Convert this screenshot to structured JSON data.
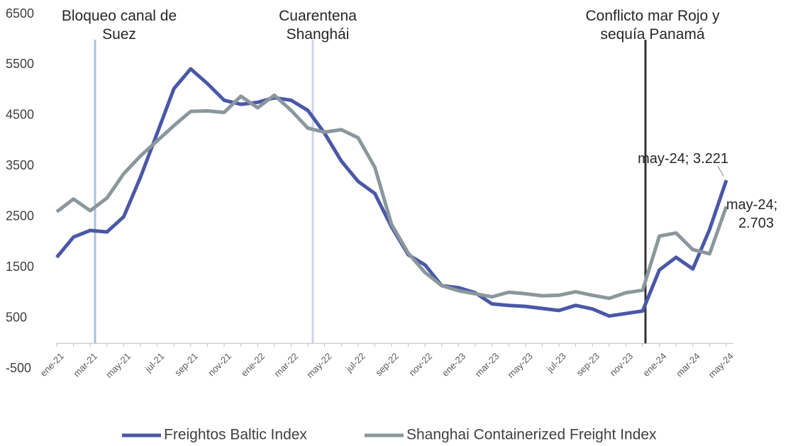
{
  "chart_data": {
    "type": "line",
    "categories": [
      "ene-21",
      null,
      "mar-21",
      null,
      "may-21",
      null,
      "jul-21",
      null,
      "sep-21",
      null,
      "nov-21",
      null,
      "ene-22",
      null,
      "mar-22",
      null,
      "may-22",
      null,
      "jul-22",
      null,
      "sep-22",
      null,
      "nov-22",
      null,
      "ene-23",
      null,
      "mar-23",
      null,
      "may-23",
      null,
      "jul-23",
      null,
      "sep-23",
      null,
      "nov-23",
      null,
      "ene-24",
      null,
      "mar-24",
      null,
      "may-24"
    ],
    "series": [
      {
        "name": "Freightos Baltic Index",
        "color": "#4a58a6",
        "values": [
          1700,
          2100,
          2230,
          2200,
          2500,
          3280,
          4150,
          5030,
          5420,
          5130,
          4800,
          4720,
          4760,
          4850,
          4800,
          4600,
          4150,
          3600,
          3200,
          2960,
          2300,
          1750,
          1550,
          1140,
          1100,
          1000,
          780,
          750,
          730,
          690,
          650,
          750,
          680,
          540,
          590,
          640,
          1450,
          1700,
          1470,
          2250,
          3221
        ],
        "value_labels": [
          null,
          null,
          null,
          null,
          null,
          null,
          null,
          null,
          null,
          null,
          null,
          null,
          null,
          null,
          null,
          null,
          null,
          null,
          null,
          null,
          null,
          null,
          null,
          null,
          null,
          null,
          null,
          null,
          null,
          null,
          null,
          null,
          null,
          null,
          null,
          null,
          null,
          null,
          null,
          null,
          "may-24; 3.221"
        ]
      },
      {
        "name": "Shanghai Containerized Freight Index",
        "color": "#8a989d",
        "values": [
          2600,
          2850,
          2620,
          2870,
          3350,
          3700,
          4000,
          4300,
          4580,
          4590,
          4560,
          4880,
          4650,
          4900,
          4600,
          4250,
          4170,
          4220,
          4060,
          3480,
          2350,
          1780,
          1400,
          1140,
          1040,
          980,
          920,
          1010,
          980,
          940,
          950,
          1020,
          950,
          890,
          1000,
          1050,
          2120,
          2180,
          1850,
          1770,
          2703
        ],
        "value_labels": [
          null,
          null,
          null,
          null,
          null,
          null,
          null,
          null,
          null,
          null,
          null,
          null,
          null,
          null,
          null,
          null,
          null,
          null,
          null,
          null,
          null,
          null,
          null,
          null,
          null,
          null,
          null,
          null,
          null,
          null,
          null,
          null,
          null,
          null,
          null,
          null,
          null,
          null,
          null,
          null,
          "may-24; 2.703"
        ]
      }
    ],
    "annotations": [
      {
        "text": [
          "Bloqueo canal de",
          "Suez"
        ],
        "color": "#a9c1da"
      },
      {
        "text": [
          "Cuarentena",
          "Shanghái"
        ],
        "color": "#c9d5ec"
      },
      {
        "text": [
          "Conflicto mar Rojo y",
          "sequía Panamá"
        ],
        "color": "#333333"
      }
    ],
    "ylim": [
      -500,
      6500
    ],
    "yticks": [
      -500,
      500,
      1500,
      2500,
      3500,
      4500,
      5500,
      6500
    ],
    "legend": "bottom"
  }
}
